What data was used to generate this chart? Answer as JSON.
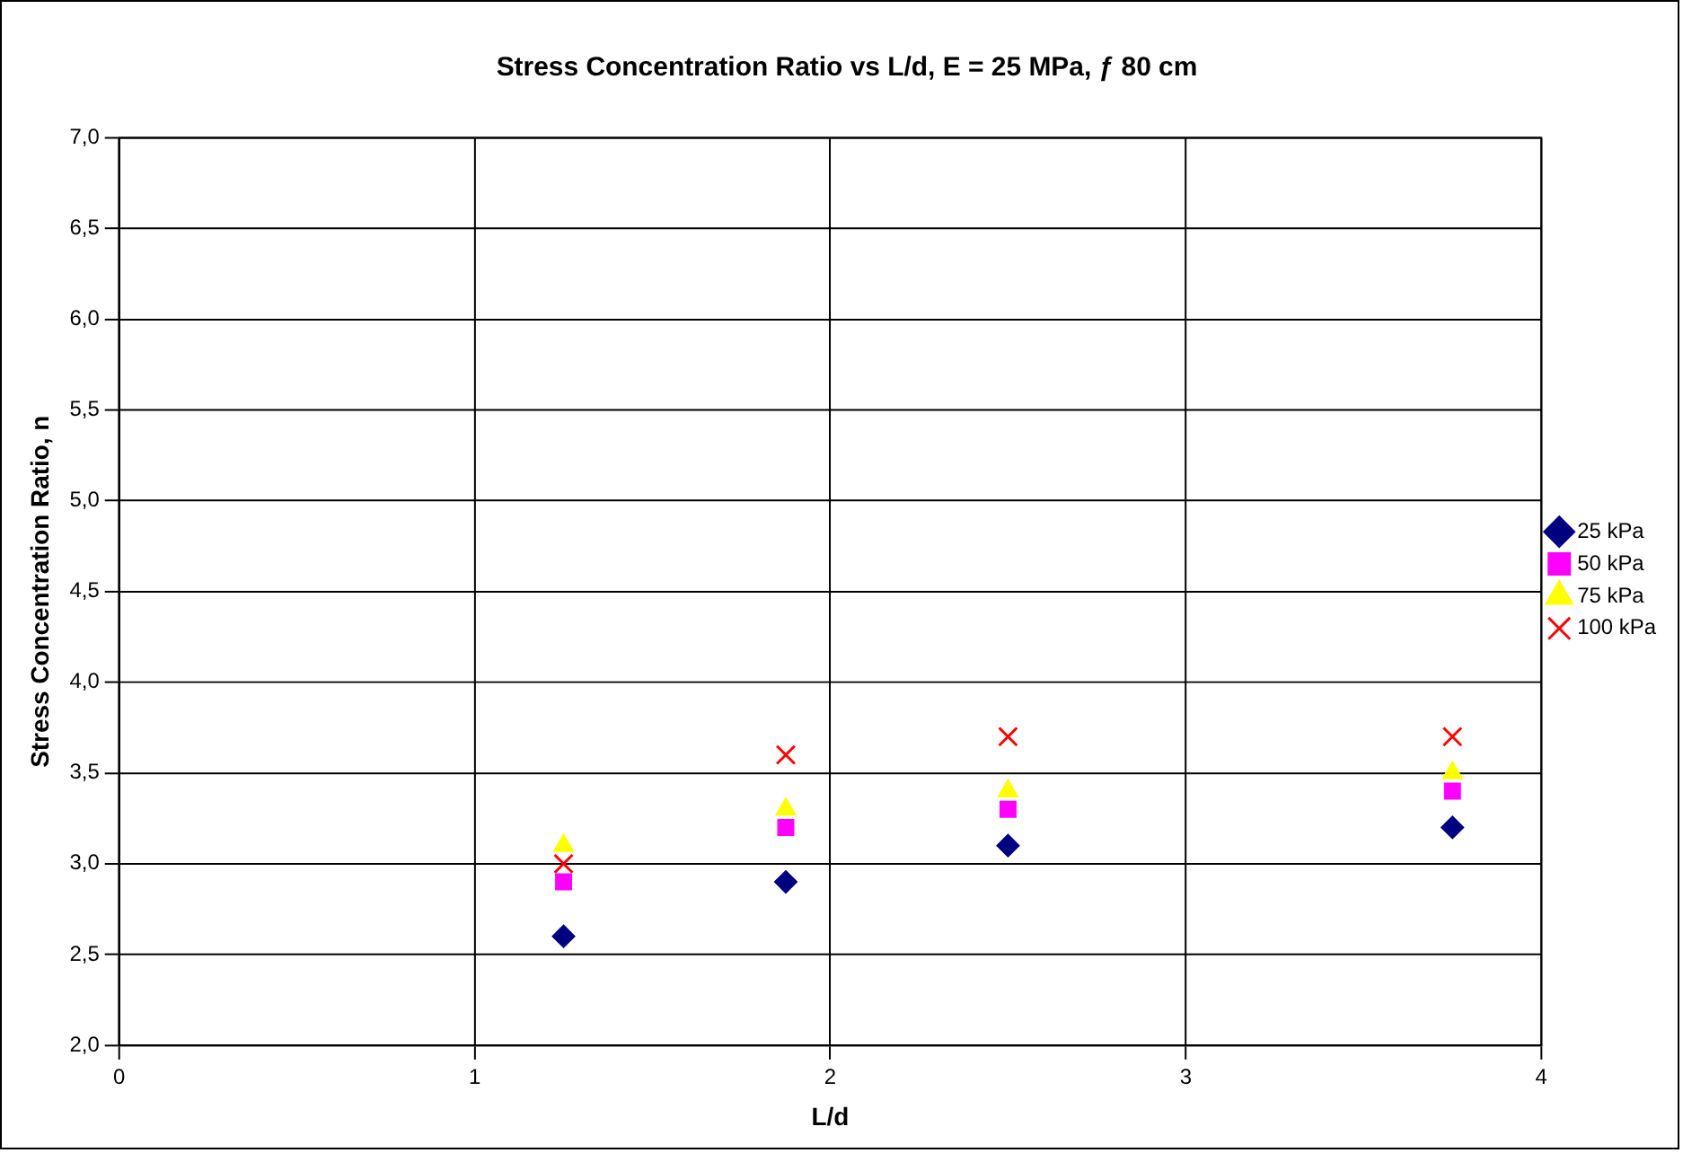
{
  "chart_data": {
    "type": "scatter",
    "title": "Stress Concentration Ratio vs L/d, E = 25 MPa, ƒ 80 cm",
    "xlabel": "L/d",
    "ylabel": "Stress Concentration Ratio, n",
    "x": [
      1.25,
      1.875,
      2.5,
      3.75
    ],
    "series": [
      {
        "name": "25 kPa",
        "color": "#000080",
        "marker": "diamond",
        "values": [
          2.6,
          2.9,
          3.1,
          3.2
        ]
      },
      {
        "name": "50 kPa",
        "color": "#ff00ff",
        "marker": "square",
        "values": [
          2.9,
          3.2,
          3.3,
          3.4
        ]
      },
      {
        "name": "75 kPa",
        "color": "#ffff00",
        "marker": "triangle",
        "values": [
          3.1,
          3.3,
          3.4,
          3.5
        ]
      },
      {
        "name": "100 kPa",
        "color": "#ff0000",
        "marker": "cross",
        "values": [
          3.0,
          3.6,
          3.7,
          3.7
        ]
      }
    ],
    "xlim": [
      0,
      4
    ],
    "xticks": [
      0,
      1,
      2,
      3,
      4
    ],
    "ylim": [
      2,
      7
    ],
    "yticks": [
      {
        "value": 2,
        "label": "2,0"
      },
      {
        "value": 2.5,
        "label": "2,5"
      },
      {
        "value": 3,
        "label": "3,0"
      },
      {
        "value": 3.5,
        "label": "3,5"
      },
      {
        "value": 4,
        "label": "4,0"
      },
      {
        "value": 4.5,
        "label": "4,5"
      },
      {
        "value": 5,
        "label": "5,0"
      },
      {
        "value": 5.5,
        "label": "5,5"
      },
      {
        "value": 6,
        "label": "6,0"
      },
      {
        "value": 6.5,
        "label": "6,5"
      },
      {
        "value": 7,
        "label": "7,0"
      }
    ],
    "grid": true,
    "legend": "right"
  }
}
